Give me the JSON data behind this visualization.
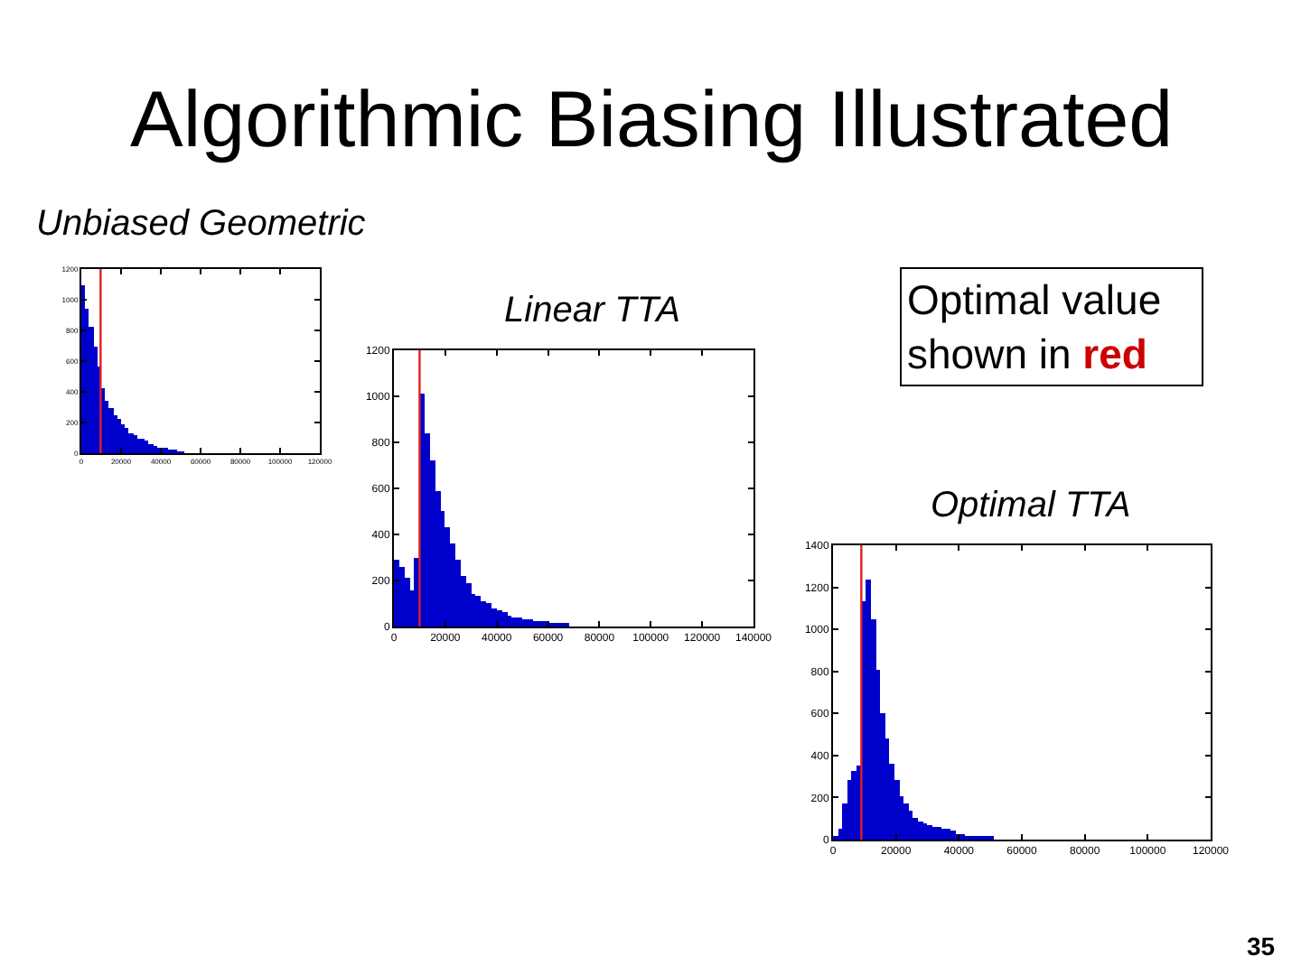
{
  "chart_data": [
    {
      "type": "other",
      "title": "Algorithmic Biasing Illustrated",
      "annotations": [
        "Optimal value shown in red",
        "35"
      ]
    },
    {
      "type": "histogram",
      "title": "Unbiased Geometric",
      "bins": [
        0,
        2000,
        4000,
        6000,
        8000,
        10000,
        12000,
        14000,
        16000,
        18000,
        20000,
        22000,
        24000,
        26000,
        28000,
        30000,
        32000,
        34000,
        36000,
        38000,
        40000,
        42000,
        44000,
        46000,
        48000,
        50000,
        52000
      ],
      "values": [
        1100,
        940,
        820,
        690,
        570,
        420,
        340,
        290,
        250,
        220,
        190,
        160,
        130,
        120,
        100,
        90,
        80,
        60,
        50,
        40,
        40,
        30,
        20,
        20,
        10,
        10
      ],
      "color": "#0000cc",
      "xlim": [
        0,
        120000
      ],
      "ylim": [
        0,
        1200
      ],
      "xticks": [
        0,
        20000,
        40000,
        60000,
        80000,
        100000,
        120000
      ],
      "yticks": [
        0,
        200,
        400,
        600,
        800,
        1000,
        1200
      ],
      "ref_lines": [
        {
          "axis": "x",
          "value": 9700,
          "color": "#dd2020"
        }
      ]
    },
    {
      "type": "histogram",
      "title": "Linear TTA",
      "bins": [
        0,
        2000,
        4000,
        6000,
        8000,
        10000,
        12000,
        14000,
        16000,
        18000,
        20000,
        22000,
        24000,
        26000,
        28000,
        30000,
        32000,
        34000,
        36000,
        38000,
        40000,
        42000,
        44000,
        46000,
        48000,
        50000,
        52000,
        54000,
        56000,
        58000,
        60000,
        62000,
        64000,
        66000,
        68000
      ],
      "values": [
        290,
        260,
        210,
        160,
        300,
        1010,
        840,
        720,
        590,
        500,
        430,
        360,
        290,
        220,
        190,
        140,
        130,
        110,
        100,
        80,
        70,
        60,
        50,
        40,
        40,
        30,
        30,
        20,
        20,
        20,
        10,
        10,
        10,
        10
      ],
      "color": "#0000cc",
      "xlim": [
        0,
        140000
      ],
      "ylim": [
        0,
        1200
      ],
      "xticks": [
        0,
        20000,
        40000,
        60000,
        80000,
        100000,
        120000,
        140000
      ],
      "yticks": [
        0,
        200,
        400,
        600,
        800,
        1000,
        1200
      ],
      "ref_lines": [
        {
          "axis": "x",
          "value": 10000,
          "color": "#dd2020"
        }
      ]
    },
    {
      "type": "histogram",
      "title": "Optimal TTA",
      "bins": [
        0,
        1500,
        3000,
        4500,
        6000,
        7500,
        9000,
        10500,
        12000,
        13500,
        15000,
        16500,
        18000,
        19500,
        21000,
        22500,
        24000,
        25500,
        27000,
        28500,
        30000,
        31500,
        33000,
        34500,
        36000,
        37500,
        39000,
        40500,
        42000,
        43500,
        45000,
        46500,
        48000,
        49500,
        51000
      ],
      "values": [
        10,
        50,
        170,
        280,
        330,
        350,
        1130,
        1240,
        1050,
        810,
        600,
        480,
        360,
        280,
        210,
        170,
        140,
        100,
        90,
        80,
        70,
        60,
        60,
        50,
        50,
        40,
        30,
        30,
        20,
        20,
        10,
        10,
        10,
        10
      ],
      "color": "#0000cc",
      "xlim": [
        0,
        120000
      ],
      "ylim": [
        0,
        1400
      ],
      "xticks": [
        0,
        20000,
        40000,
        60000,
        80000,
        100000,
        120000
      ],
      "yticks": [
        0,
        200,
        400,
        600,
        800,
        1000,
        1200,
        1400
      ],
      "ref_lines": [
        {
          "axis": "x",
          "value": 9000,
          "color": "#dd2020"
        }
      ]
    }
  ]
}
